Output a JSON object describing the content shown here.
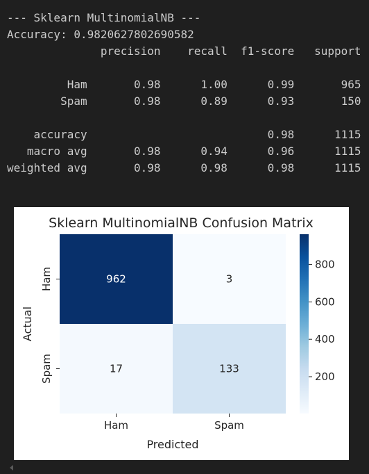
{
  "console": {
    "lines": [
      "--- Sklearn MultinomialNB ---",
      "Accuracy: 0.9820627802690582",
      "              precision    recall  f1-score   support",
      "",
      "         Ham       0.98      1.00      0.99       965",
      "        Spam       0.98      0.89      0.93       150",
      "",
      "    accuracy                           0.98      1115",
      "   macro avg       0.98      0.94      0.96      1115",
      "weighted avg       0.98      0.98      0.98      1115"
    ]
  },
  "chart_data": {
    "type": "heatmap",
    "title": "Sklearn MultinomialNB Confusion Matrix",
    "xlabel": "Predicted",
    "ylabel": "Actual",
    "x_categories": [
      "Ham",
      "Spam"
    ],
    "y_categories": [
      "Ham",
      "Spam"
    ],
    "values": [
      [
        962,
        3
      ],
      [
        17,
        133
      ]
    ],
    "colorbar": {
      "colormap": "Blues",
      "min": 3,
      "max": 962,
      "ticks": [
        200,
        400,
        600,
        800
      ],
      "tick_labels": [
        "200",
        "400",
        "600",
        "800"
      ]
    },
    "annotate": true,
    "cell_colors": [
      [
        "#08306b",
        "#f7fbff"
      ],
      [
        "#f4f9fe",
        "#d3e4f3"
      ]
    ],
    "text_colors": [
      [
        "#ffffff",
        "#262626"
      ],
      [
        "#262626",
        "#262626"
      ]
    ]
  }
}
